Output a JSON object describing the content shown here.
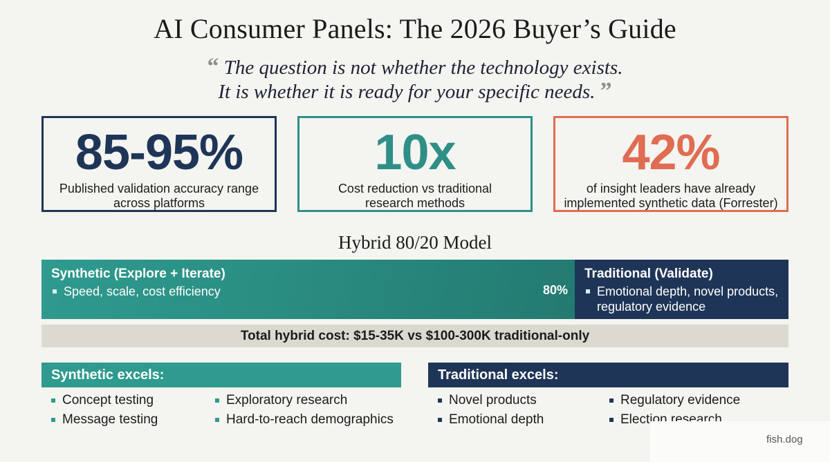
{
  "title": "AI Consumer Panels: The 2026 Buyer’s Guide",
  "quote": {
    "open_mark": "“",
    "line1": "The question is not whether the technology exists.",
    "line2": "It is whether it is ready for your specific needs.",
    "close_mark": "”"
  },
  "stats": [
    {
      "value": "85-95%",
      "line1": "Published validation accuracy range",
      "line2": "across platforms",
      "color": "#1f3557"
    },
    {
      "value": "10x",
      "line1": "Cost reduction vs traditional",
      "line2": "research methods",
      "color": "#2f8f86"
    },
    {
      "value": "42%",
      "line1": "of insight leaders have already",
      "line2": "implemented synthetic data (Forrester)",
      "color": "#e06c52"
    }
  ],
  "hybrid": {
    "title": "Hybrid 80/20 Model",
    "synthetic": {
      "heading": "Synthetic (Explore + Iterate)",
      "items": [
        "Speed, scale, cost efficiency"
      ],
      "percent": "80%",
      "color": "#2f9a8e"
    },
    "traditional": {
      "heading": "Traditional (Validate)",
      "items": [
        "Emotional depth, novel products,",
        "regulatory evidence"
      ],
      "color": "#1f3557"
    },
    "total": "Total hybrid cost: $15-35K vs $100-300K traditional-only"
  },
  "synthetic_excels": {
    "heading": "Synthetic excels:",
    "items": [
      "Concept testing",
      "Message testing",
      "Exploratory research",
      "Hard-to-reach demographics"
    ]
  },
  "traditional_excels": {
    "heading": "Traditional excels:",
    "items": [
      "Novel products",
      "Emotional depth",
      "Regulatory evidence",
      "Election research"
    ]
  },
  "watermark": "fish.dog"
}
